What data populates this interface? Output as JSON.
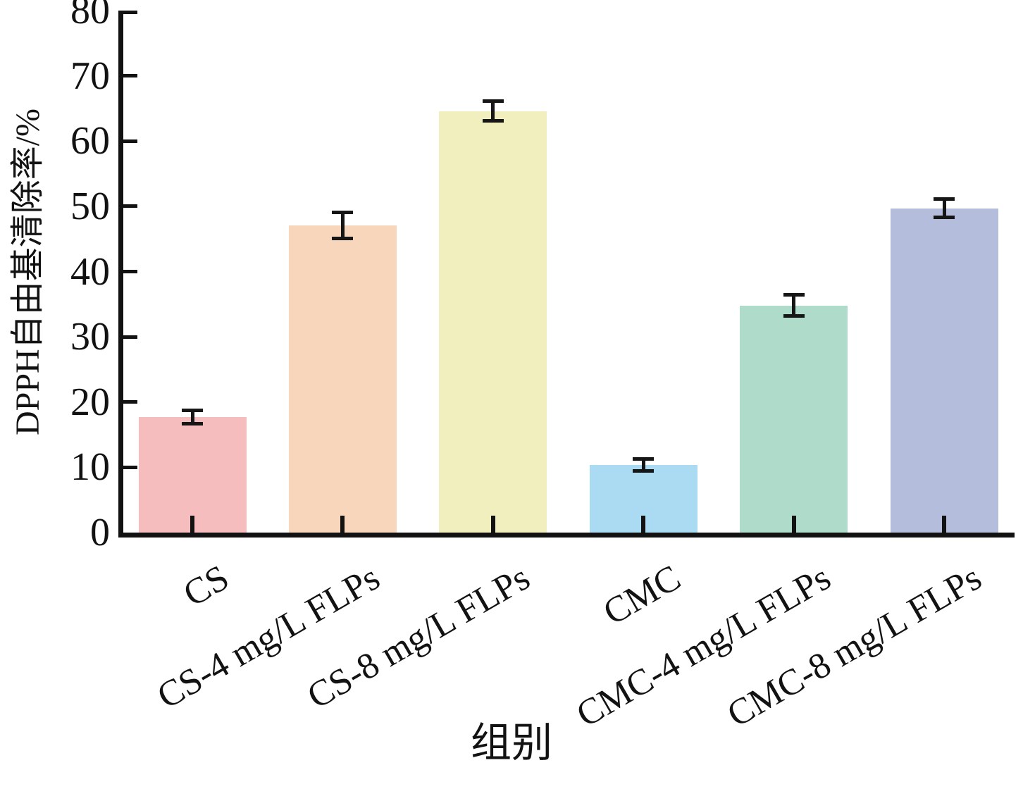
{
  "chart_data": {
    "type": "bar",
    "title": "",
    "xlabel": "组别",
    "ylabel": "DPPH自由基清除率/%",
    "categories": [
      "CS",
      "CS-4 mg/L FLPs",
      "CS-8 mg/L FLPs",
      "CMC",
      "CMC-4 mg/L FLPs",
      "CMC-8 mg/L FLPs"
    ],
    "values": [
      17.7,
      47.1,
      64.6,
      10.4,
      34.8,
      49.7
    ],
    "errors": [
      1.0,
      2.0,
      1.5,
      0.9,
      1.6,
      1.4
    ],
    "bar_colors": [
      "#f5bdbe",
      "#f7d6bb",
      "#f1efbe",
      "#abdbf2",
      "#aedbca",
      "#b5bddd"
    ],
    "error_bar_color": "#161616",
    "axis_color": "#121212",
    "ylim": [
      0,
      80
    ],
    "yticks": [
      0,
      10,
      20,
      30,
      40,
      50,
      60,
      70,
      80
    ],
    "grid": false,
    "legend": null
  }
}
